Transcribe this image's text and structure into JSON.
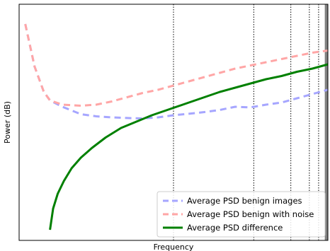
{
  "chart_data": {
    "type": "line",
    "title": "",
    "xlabel": "Frequency",
    "ylabel": "Power (dB)",
    "x_ticks": [],
    "y_ticks": [],
    "xlim": [
      0,
      1
    ],
    "ylim": [
      0,
      1
    ],
    "grid": "none",
    "legend_position": "lower-right",
    "vertical_reference_lines": [
      0.5,
      0.76,
      0.88,
      0.94,
      0.97,
      0.993
    ],
    "shaded_band": {
      "from": 0.99,
      "to": 1.0,
      "color": "#808080"
    },
    "series": [
      {
        "name": "Average PSD benign images",
        "color": "#a6a6ff",
        "dash": "dashed",
        "x": [
          0.02,
          0.05,
          0.08,
          0.1,
          0.14,
          0.2,
          0.25,
          0.3,
          0.35,
          0.4,
          0.45,
          0.5,
          0.55,
          0.6,
          0.65,
          0.7,
          0.75,
          0.8,
          0.85,
          0.9,
          0.95,
          1.0
        ],
        "y": [
          0.97,
          0.77,
          0.65,
          0.61,
          0.58,
          0.545,
          0.535,
          0.53,
          0.527,
          0.525,
          0.53,
          0.54,
          0.547,
          0.555,
          0.565,
          0.58,
          0.577,
          0.59,
          0.6,
          0.62,
          0.64,
          0.66
        ]
      },
      {
        "name": "Average PSD benign with noise",
        "color": "#ffa6a6",
        "dash": "dashed",
        "x": [
          0.02,
          0.05,
          0.08,
          0.1,
          0.14,
          0.2,
          0.25,
          0.3,
          0.35,
          0.4,
          0.45,
          0.5,
          0.55,
          0.6,
          0.65,
          0.7,
          0.75,
          0.8,
          0.85,
          0.9,
          0.95,
          1.0
        ],
        "y": [
          0.97,
          0.77,
          0.65,
          0.61,
          0.59,
          0.585,
          0.59,
          0.605,
          0.625,
          0.645,
          0.66,
          0.68,
          0.7,
          0.72,
          0.74,
          0.76,
          0.775,
          0.79,
          0.805,
          0.82,
          0.835,
          0.845
        ]
      },
      {
        "name": "Average PSD difference",
        "color": "#008000",
        "dash": "solid",
        "x": [
          0.1,
          0.11,
          0.125,
          0.145,
          0.17,
          0.2,
          0.235,
          0.28,
          0.33,
          0.38,
          0.43,
          0.48,
          0.55,
          0.6,
          0.65,
          0.7,
          0.75,
          0.8,
          0.85,
          0.9,
          0.95,
          1.0
        ],
        "y": [
          0.0,
          0.1,
          0.17,
          0.23,
          0.29,
          0.34,
          0.385,
          0.435,
          0.48,
          0.51,
          0.54,
          0.565,
          0.6,
          0.625,
          0.65,
          0.67,
          0.69,
          0.71,
          0.725,
          0.745,
          0.76,
          0.78
        ]
      }
    ]
  }
}
